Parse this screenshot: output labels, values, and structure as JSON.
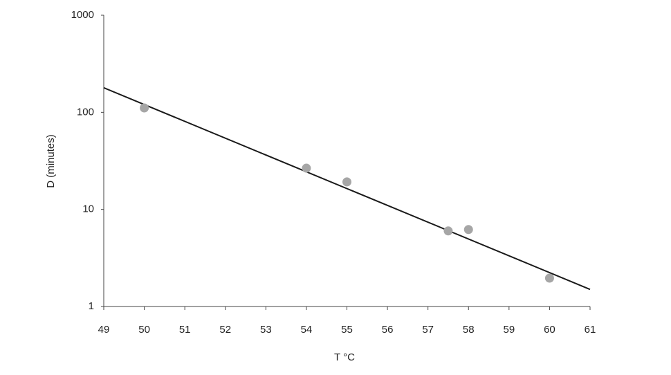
{
  "chart_data": {
    "type": "scatter",
    "x_label": "T °C",
    "y_label": "D (minutes)",
    "x": [
      50,
      54,
      55,
      57.5,
      58,
      60
    ],
    "values": [
      111,
      26.6,
      19.2,
      6.0,
      6.2,
      1.96
    ],
    "color": "#a6a6a6",
    "trendline": {
      "x": [
        49,
        61
      ],
      "values": [
        179,
        1.5
      ],
      "color": "#1a1a1a"
    },
    "xlim": [
      49,
      61
    ],
    "xticks": [
      49,
      50,
      51,
      52,
      53,
      54,
      55,
      56,
      57,
      58,
      59,
      60,
      61
    ],
    "ylim": [
      1,
      1000
    ],
    "yticks": [
      1,
      10,
      100,
      1000
    ],
    "yscale": "log",
    "grid": false
  }
}
